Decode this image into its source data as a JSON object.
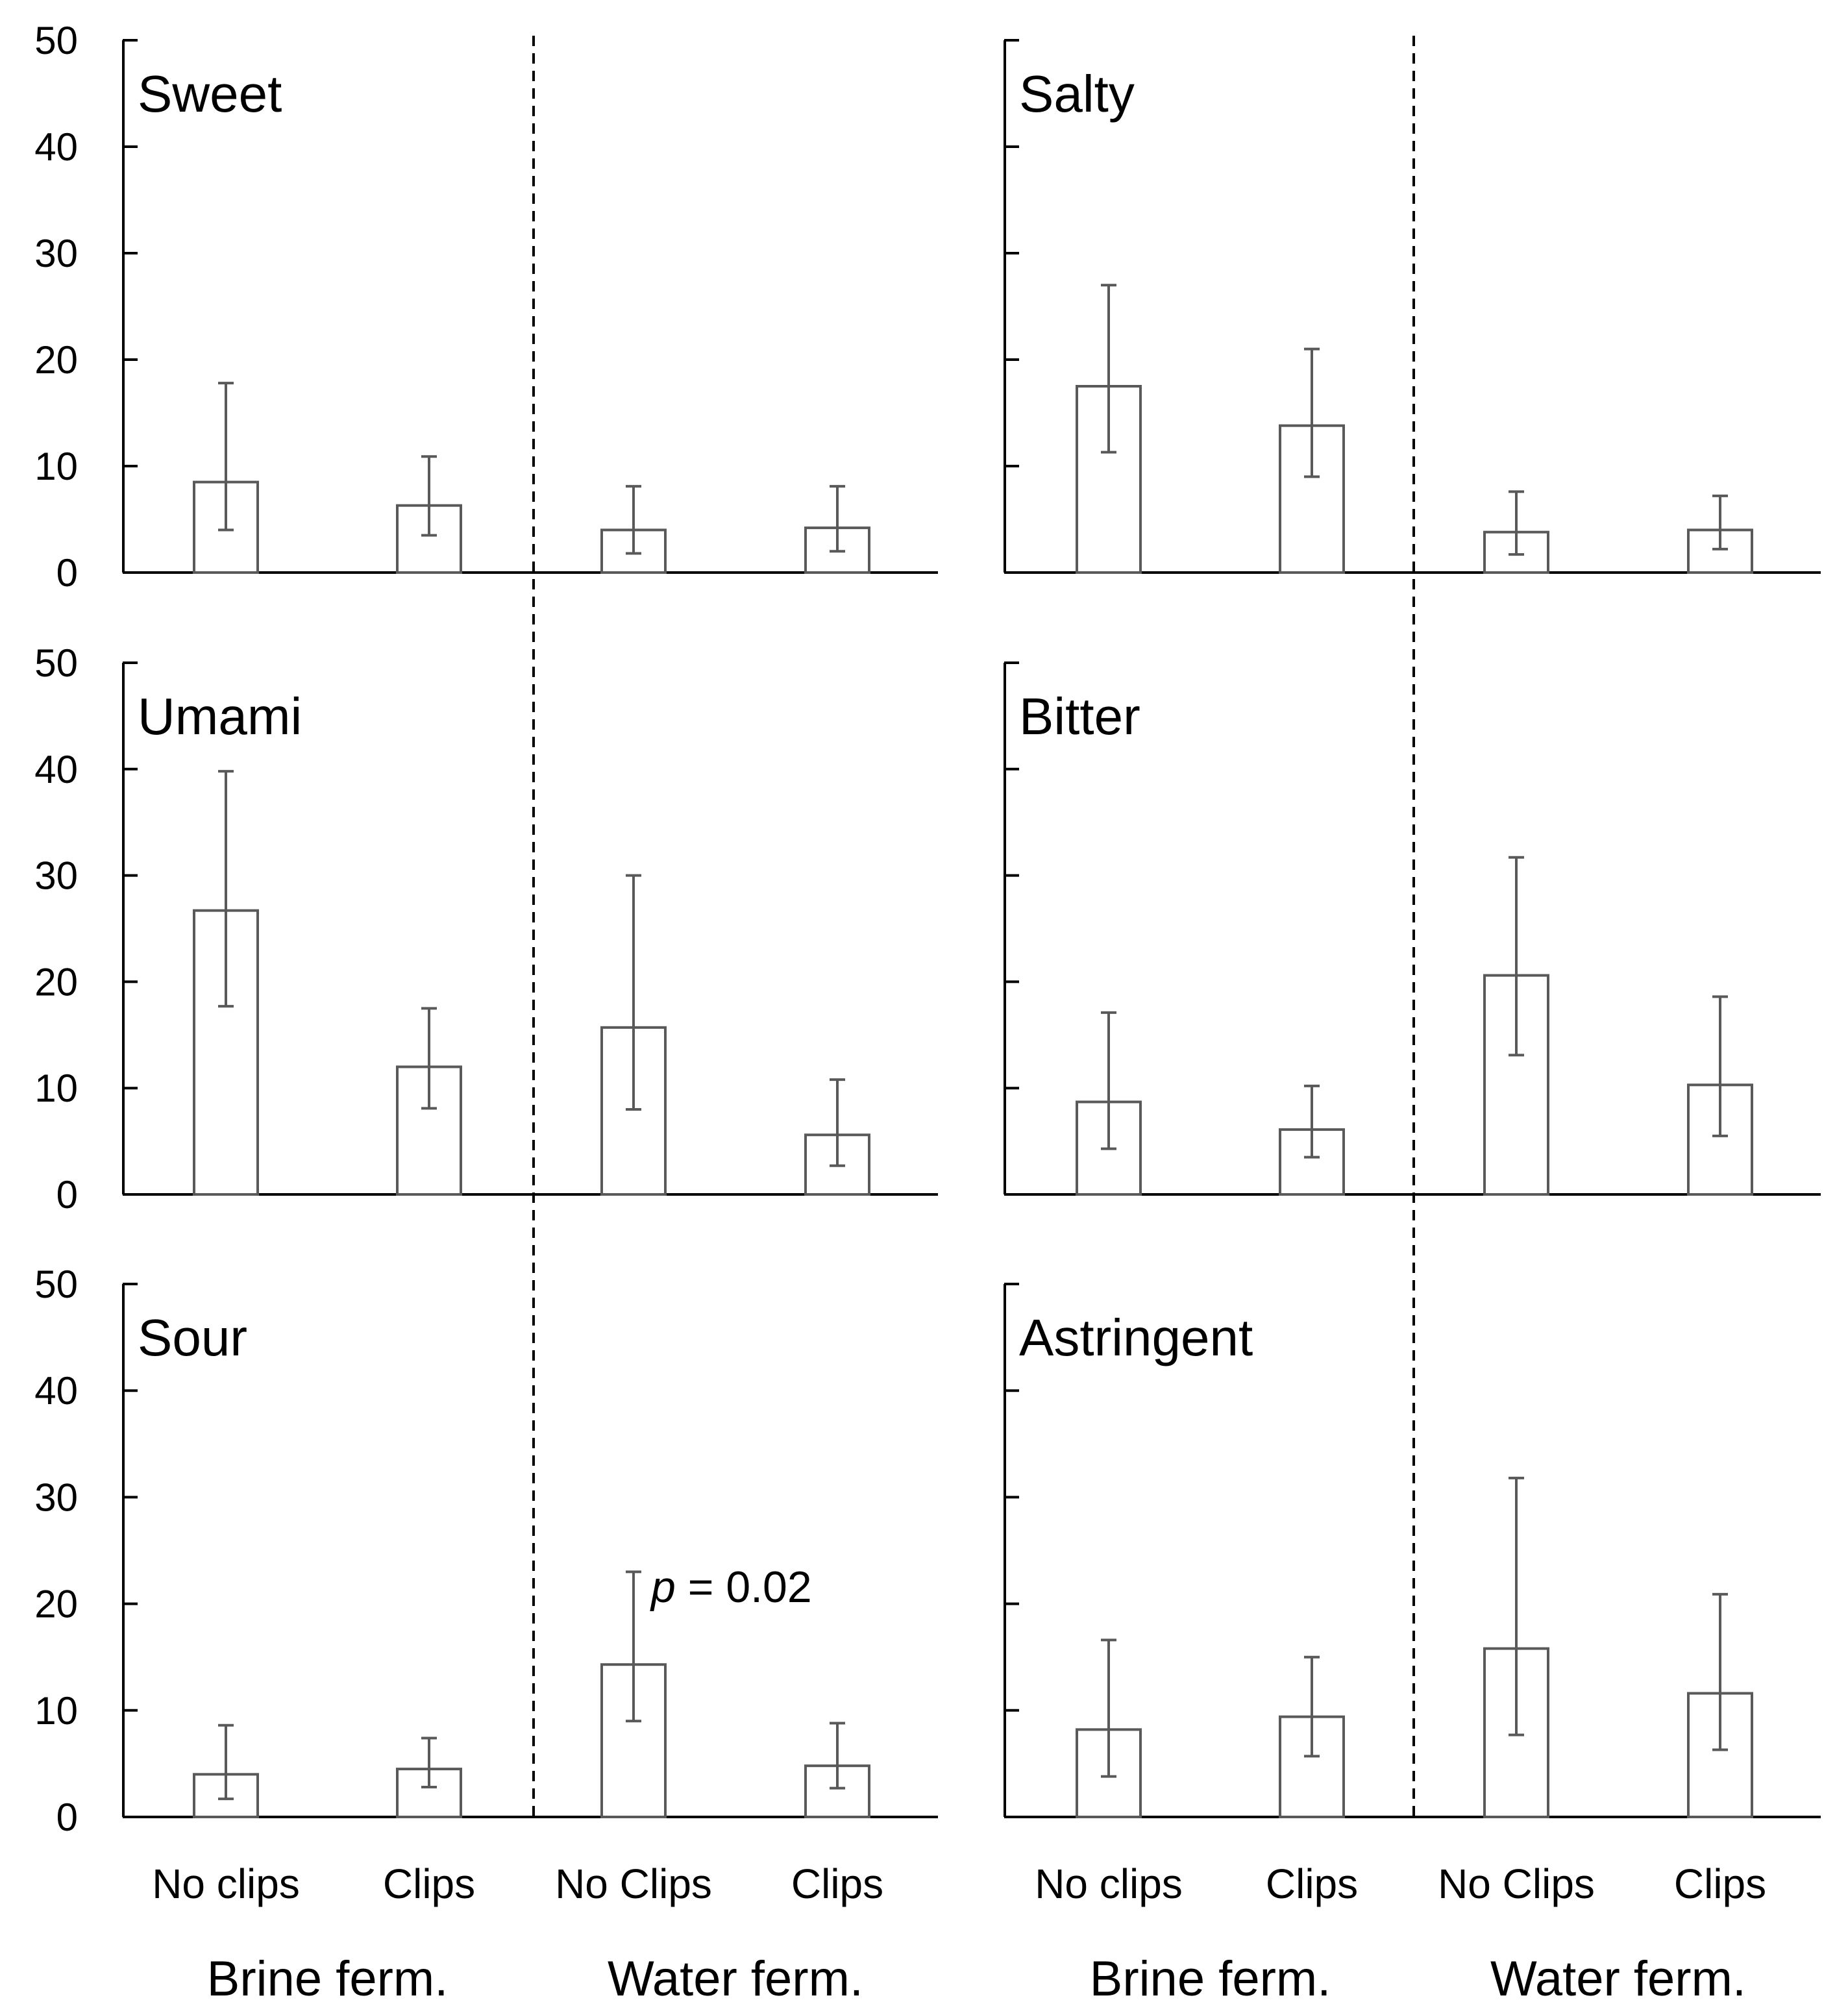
{
  "chart_data": [
    {
      "type": "bar",
      "title": "Sweet",
      "ylim": [
        0,
        50
      ],
      "yticks": [
        "0",
        "10",
        "20",
        "30",
        "40",
        "50"
      ],
      "categories": [
        "No clips",
        "Clips",
        "No Clips",
        "Clips"
      ],
      "values": [
        8.5,
        6.3,
        4.0,
        4.2
      ],
      "error_low": [
        4.0,
        3.5,
        1.8,
        2.0
      ],
      "error_high": [
        17.8,
        10.9,
        8.1,
        8.1
      ]
    },
    {
      "type": "bar",
      "title": "Salty",
      "ylim": [
        0,
        50
      ],
      "categories": [
        "No clips",
        "Clips",
        "No Clips",
        "Clips"
      ],
      "values": [
        17.5,
        13.8,
        3.8,
        4.0
      ],
      "error_low": [
        11.3,
        9.0,
        1.7,
        2.2
      ],
      "error_high": [
        27.0,
        21.0,
        7.6,
        7.2
      ]
    },
    {
      "type": "bar",
      "title": "Umami",
      "ylim": [
        0,
        50
      ],
      "yticks": [
        "0",
        "10",
        "20",
        "30",
        "40",
        "50"
      ],
      "categories": [
        "No clips",
        "Clips",
        "No Clips",
        "Clips"
      ],
      "values": [
        26.7,
        12.0,
        15.7,
        5.6
      ],
      "error_low": [
        17.7,
        8.1,
        8.0,
        2.7
      ],
      "error_high": [
        39.8,
        17.5,
        30.0,
        10.8
      ]
    },
    {
      "type": "bar",
      "title": "Bitter",
      "ylim": [
        0,
        50
      ],
      "categories": [
        "No clips",
        "Clips",
        "No Clips",
        "Clips"
      ],
      "values": [
        8.7,
        6.1,
        20.6,
        10.3
      ],
      "error_low": [
        4.3,
        3.5,
        13.1,
        5.5
      ],
      "error_high": [
        17.1,
        10.2,
        31.7,
        18.6
      ]
    },
    {
      "type": "bar",
      "title": "Sour",
      "ylim": [
        0,
        50
      ],
      "yticks": [
        "0",
        "10",
        "20",
        "30",
        "40",
        "50"
      ],
      "categories": [
        "No clips",
        "Clips",
        "No Clips",
        "Clips"
      ],
      "values": [
        4.0,
        4.5,
        14.3,
        4.8
      ],
      "error_low": [
        1.7,
        2.8,
        9.0,
        2.7
      ],
      "error_high": [
        8.6,
        7.4,
        23.0,
        8.8
      ],
      "annotation": {
        "italic": "p",
        "text": " = 0.02"
      }
    },
    {
      "type": "bar",
      "title": "Astringent",
      "ylim": [
        0,
        50
      ],
      "categories": [
        "No clips",
        "Clips",
        "No Clips",
        "Clips"
      ],
      "values": [
        8.2,
        9.4,
        15.8,
        11.6
      ],
      "error_low": [
        3.8,
        5.7,
        7.7,
        6.3
      ],
      "error_high": [
        16.6,
        15.0,
        31.8,
        20.9
      ]
    }
  ],
  "x_categories": {
    "left": [
      "No clips",
      "Clips",
      "No Clips",
      "Clips"
    ],
    "right": [
      "No clips",
      "Clips",
      "No Clips",
      "Clips"
    ]
  },
  "group_labels": {
    "left": [
      "Brine ferm.",
      "Water ferm."
    ],
    "right": [
      "Brine ferm.",
      "Water ferm."
    ]
  },
  "colors": {
    "bar_fill": "#ffffff",
    "bar_stroke": "#595959",
    "error_bar": "#595959",
    "axis": "#000000"
  }
}
